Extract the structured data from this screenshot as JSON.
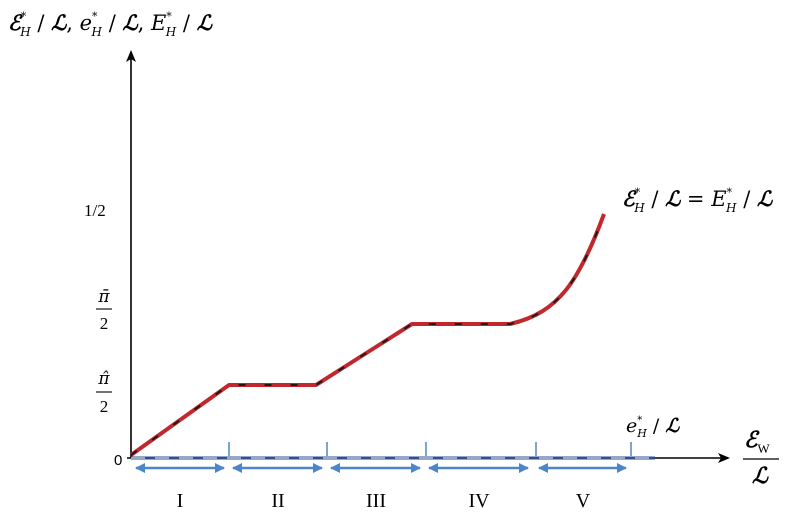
{
  "diagram": {
    "y_axis_label": {
      "parts": [
        "ℰ",
        "*",
        "H",
        " / ",
        "ℒ",
        ", ",
        "e",
        "*",
        "H",
        " / ",
        "ℒ",
        ", ",
        "E",
        "*",
        "H",
        " / ",
        "ℒ"
      ]
    },
    "x_axis_label": {
      "numerator_main": "ℰ",
      "numerator_sub": "W",
      "denominator": "ℒ"
    },
    "y_ticks": {
      "half": "1/2",
      "pibar_num": "π̄",
      "pibar_den": "2",
      "pihat_num": "π̂",
      "pihat_den": "2",
      "origin": "0"
    },
    "curve_label": {
      "parts": [
        "ℰ",
        "*",
        "H",
        " / ",
        "ℒ",
        " = ",
        "E",
        "*",
        "H",
        " / ",
        "ℒ"
      ]
    },
    "flat_label": {
      "parts": [
        "e",
        "*",
        "H",
        " / ",
        "ℒ"
      ]
    },
    "regions": [
      "I",
      "II",
      "III",
      "IV",
      "V"
    ],
    "colors": {
      "curve": "#c0282d",
      "dash": "#1a1a1a",
      "flat_line": "#2f4f8f",
      "arrows": "#4a86c8",
      "ticks": "#4a86c8",
      "axes": "#000000"
    }
  }
}
